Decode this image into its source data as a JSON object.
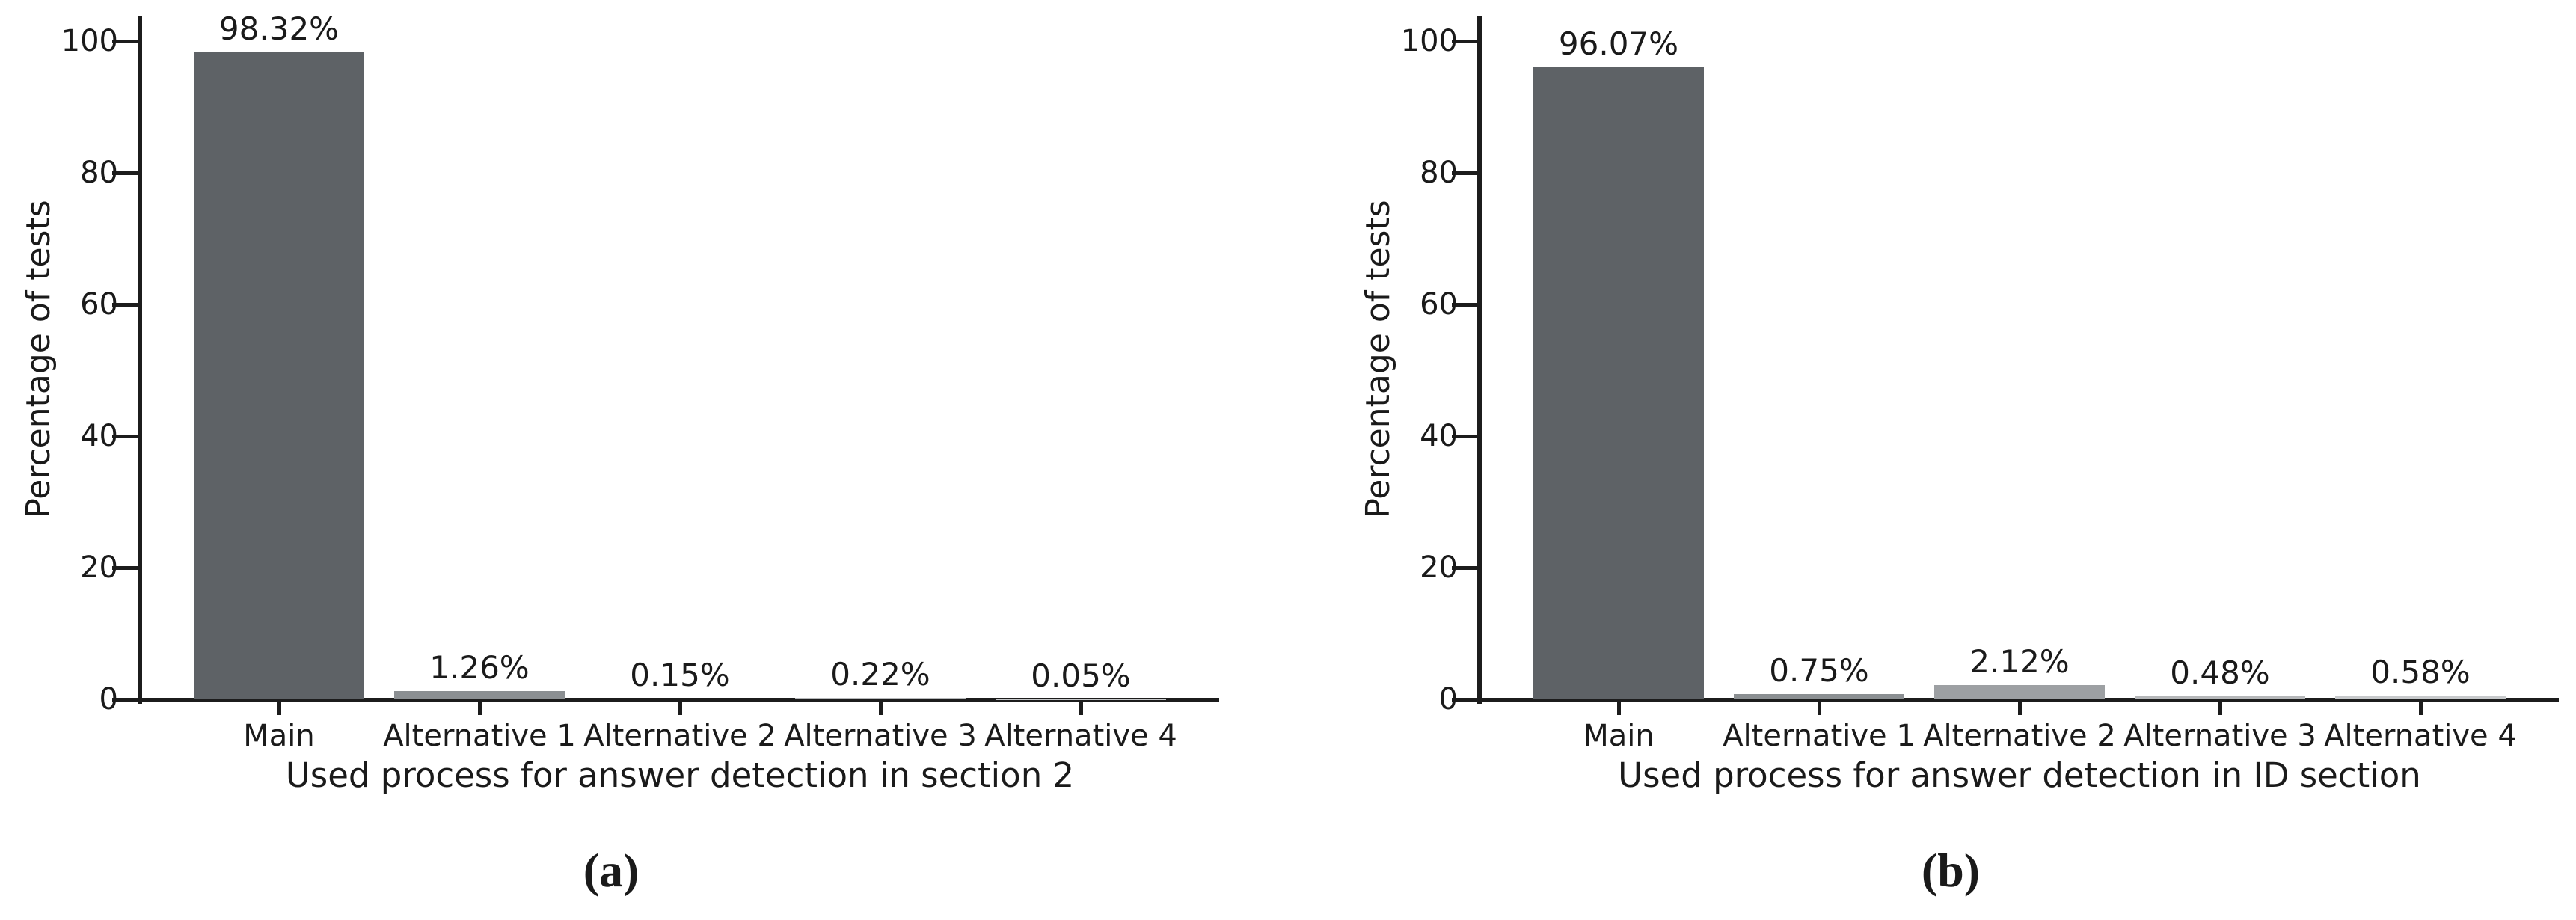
{
  "page": {
    "background": "#ffffff",
    "axis_color": "#1c1c1c",
    "text_color": "#1a1a1a"
  },
  "chart_data": [
    {
      "type": "bar",
      "caption": "(a)",
      "title": "",
      "xlabel": "Used process for answer detection in section 2",
      "ylabel": "Percentage of tests",
      "categories": [
        "Main",
        "Alternative 1",
        "Alternative 2",
        "Alternative 3",
        "Alternative 4"
      ],
      "values": [
        98.32,
        1.26,
        0.15,
        0.22,
        0.05
      ],
      "data_labels": [
        "98.32%",
        "1.26%",
        "0.15%",
        "0.22%",
        "0.05%"
      ],
      "yticks": [
        0,
        20,
        40,
        60,
        80,
        100
      ],
      "ylim": [
        0,
        100
      ],
      "grid": false,
      "legend": "none",
      "bar_colors": [
        "#5e6266",
        "#8b8f92",
        "#9da0a3",
        "#b5b7b9",
        "#c7c9cb"
      ]
    },
    {
      "type": "bar",
      "caption": "(b)",
      "title": "",
      "xlabel": "Used process for answer detection in ID section",
      "ylabel": "Percentage of tests",
      "categories": [
        "Main",
        "Alternative 1",
        "Alternative 2",
        "Alternative 3",
        "Alternative 4"
      ],
      "values": [
        96.07,
        0.75,
        2.12,
        0.48,
        0.58
      ],
      "data_labels": [
        "96.07%",
        "0.75%",
        "2.12%",
        "0.48%",
        "0.58%"
      ],
      "yticks": [
        0,
        20,
        40,
        60,
        80,
        100
      ],
      "ylim": [
        0,
        100
      ],
      "grid": false,
      "legend": "none",
      "bar_colors": [
        "#5e6266",
        "#8b8f92",
        "#9da0a3",
        "#b5b7b9",
        "#c7c9cb"
      ]
    }
  ]
}
